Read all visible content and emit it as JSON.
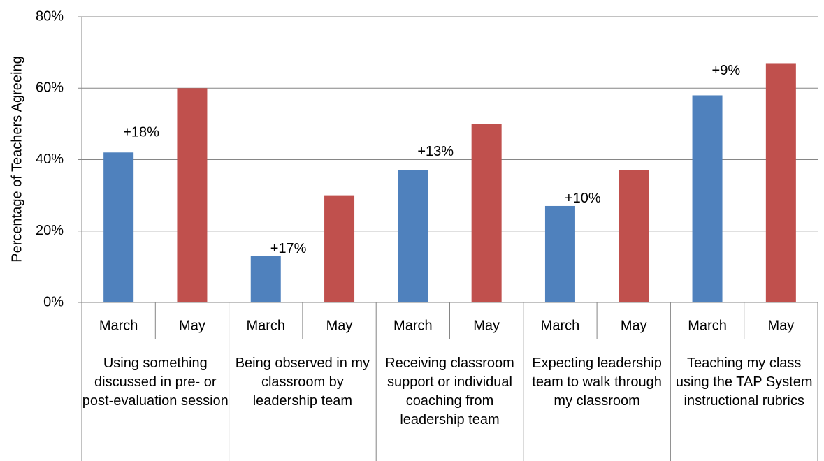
{
  "chart_data": {
    "type": "bar",
    "y_label": "Percentage of Teachers Agreeing",
    "categories": [
      "Using something discussed in pre- or post-evaluation session",
      "Being observed in my classroom by leadership team",
      "Receiving classroom support or individual coaching from leadership team",
      "Expecting leadership team to walk through my classroom",
      "Teaching my class using the TAP System instructional rubrics"
    ],
    "series": [
      {
        "name": "March",
        "color": "#4f81bd",
        "values": [
          42,
          13,
          37,
          27,
          58
        ]
      },
      {
        "name": "May",
        "color": "#c0504d",
        "values": [
          60,
          30,
          50,
          37,
          67
        ]
      }
    ],
    "annotations": [
      "+18%",
      "+17%",
      "+13%",
      "+10%",
      "+9%"
    ],
    "ylim": [
      0,
      80
    ],
    "yticks": [
      {
        "value": 0,
        "label": "0%"
      },
      {
        "value": 20,
        "label": "20%"
      },
      {
        "value": 40,
        "label": "40%"
      },
      {
        "value": 60,
        "label": "60%"
      },
      {
        "value": 80,
        "label": "80%"
      }
    ],
    "grid": true
  }
}
